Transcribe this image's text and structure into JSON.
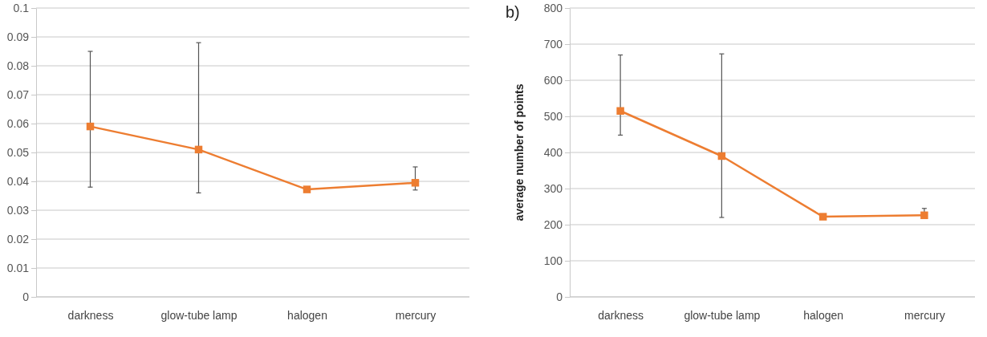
{
  "chart_data": [
    {
      "type": "line",
      "categories": [
        "darkness",
        "glow-tube lamp",
        "halogen",
        "mercury"
      ],
      "series": [
        {
          "color": "#ed7d31",
          "values": [
            0.059,
            0.051,
            0.0372,
            0.0395
          ],
          "errors": [
            [
              0.038,
              0.085
            ],
            [
              0.036,
              0.088
            ],
            null,
            [
              0.037,
              0.045
            ]
          ]
        }
      ],
      "ylim": [
        0,
        0.1
      ],
      "yticks": [
        0,
        0.01,
        0.02,
        0.03,
        0.04,
        0.05,
        0.06,
        0.07,
        0.08,
        0.09,
        0.1
      ],
      "grid": "y",
      "marker": "square",
      "line_style": "solid"
    },
    {
      "type": "line",
      "ylabel": "average number of points",
      "annotations": [
        "b)"
      ],
      "categories": [
        "darkness",
        "glow-tube lamp",
        "halogen",
        "mercury"
      ],
      "series": [
        {
          "color": "#ed7d31",
          "values": [
            515,
            390,
            222,
            226
          ],
          "errors": [
            [
              448,
              670
            ],
            [
              220,
              673
            ],
            null,
            [
              220,
              245
            ]
          ]
        }
      ],
      "ylim": [
        0,
        800
      ],
      "yticks": [
        0,
        100,
        200,
        300,
        400,
        500,
        600,
        700,
        800
      ],
      "grid": "y",
      "marker": "square",
      "line_style": "solid"
    }
  ]
}
